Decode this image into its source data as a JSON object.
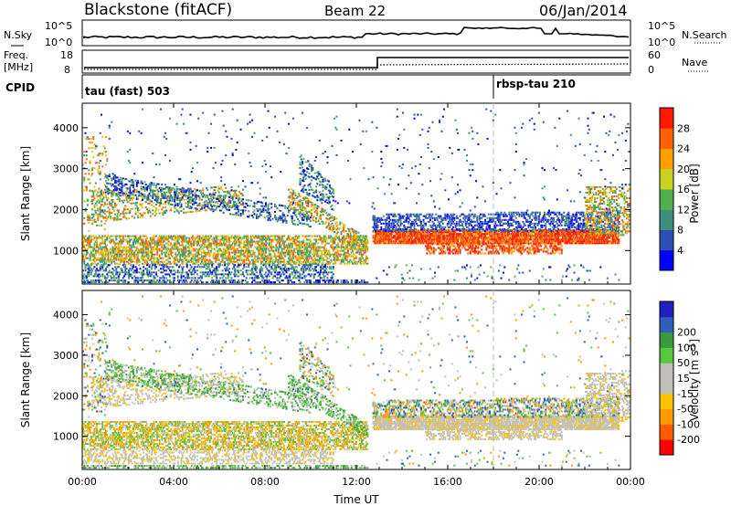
{
  "header": {
    "station": "Blackstone (fitACF)",
    "beam": "Beam 22",
    "date": "06/Jan/2014"
  },
  "noise_panel": {
    "left_label": "N.Sky",
    "right_label": "N.Search",
    "left_ticks": [
      "10^5",
      "10^0"
    ],
    "right_ticks": [
      "10^5",
      "10^0"
    ]
  },
  "freq_panel": {
    "left_label": "Freq.",
    "left_unit": "[MHz]",
    "right_label": "Nave",
    "left_ticks": [
      "18",
      "8"
    ],
    "right_ticks": [
      "60",
      "0"
    ]
  },
  "cpid": {
    "label": "CPID",
    "modes": [
      {
        "name": "tau (fast) 503",
        "start_hour": 0
      },
      {
        "name": "rbsp-tau 210",
        "start_hour": 18
      }
    ]
  },
  "colors": {
    "power_scale": [
      "#0000ff",
      "#2f4fb3",
      "#3f8f7f",
      "#50b050",
      "#c8d020",
      "#ffa000",
      "#ff6000",
      "#ff1a00"
    ],
    "velocity_scale": [
      "#ff0000",
      "#ff5a00",
      "#ff9a00",
      "#ffc000",
      "#c0c0b8",
      "#c0c0b8",
      "#55c840",
      "#3a9a40",
      "#2f5fb8",
      "#2020c0"
    ]
  },
  "chart_data": [
    {
      "type": "heatmap",
      "title": "Power",
      "xlabel": "",
      "ylabel": "Slant Range [km]",
      "x_ticks": [
        "00:00",
        "04:00",
        "08:00",
        "12:00",
        "16:00",
        "20:00",
        "00:00"
      ],
      "x_tick_hours": [
        0,
        4,
        8,
        12,
        16,
        20,
        24
      ],
      "y_ticks": [
        1000,
        2000,
        3000,
        4000
      ],
      "ylim": [
        180,
        4600
      ],
      "xlim_hours": [
        0,
        24
      ],
      "colorbar_label": "Power [dB]",
      "colorbar_ticks": [
        4,
        8,
        12,
        16,
        20,
        24,
        28
      ],
      "colorbar_range": [
        0,
        32
      ]
    },
    {
      "type": "heatmap",
      "title": "Velocity",
      "xlabel": "Time UT",
      "ylabel": "Slant Range [km]",
      "x_ticks": [
        "00:00",
        "04:00",
        "08:00",
        "12:00",
        "16:00",
        "20:00",
        "00:00"
      ],
      "x_tick_hours": [
        0,
        4,
        8,
        12,
        16,
        20,
        24
      ],
      "y_ticks": [
        1000,
        2000,
        3000,
        4000
      ],
      "ylim": [
        180,
        4600
      ],
      "xlim_hours": [
        0,
        24
      ],
      "colorbar_label": "Velocity [m s",
      "colorbar_label_sup": "-1",
      "colorbar_label_end": "]",
      "colorbar_ticks": [
        "-200",
        "-100",
        "-50",
        "-15",
        "15",
        "50",
        "100",
        "200"
      ]
    }
  ]
}
